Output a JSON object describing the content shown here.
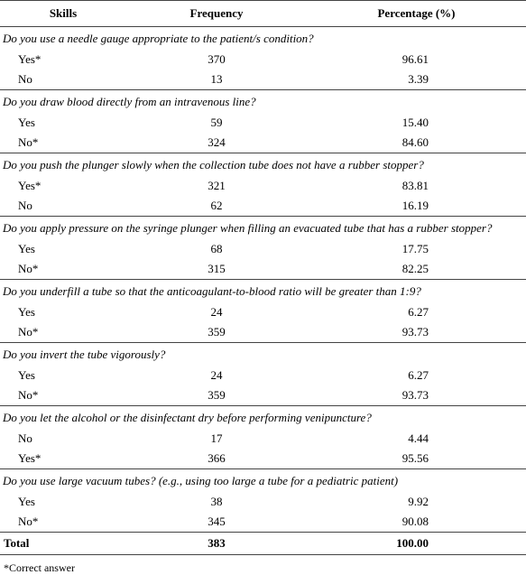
{
  "header": {
    "skills": "Skills",
    "frequency": "Frequency",
    "percentage": "Percentage (%)"
  },
  "groups": [
    {
      "question": "Do you use a needle gauge appropriate to the patient/s condition?",
      "rows": [
        [
          "Yes*",
          "370",
          "96.61"
        ],
        [
          "No",
          "13",
          "3.39"
        ]
      ]
    },
    {
      "question": "Do you draw blood directly from an intravenous line?",
      "rows": [
        [
          "Yes",
          "59",
          "15.40"
        ],
        [
          "No*",
          "324",
          "84.60"
        ]
      ]
    },
    {
      "question": "Do you push the plunger slowly when the collection tube does not have a rubber stopper?",
      "rows": [
        [
          "Yes*",
          "321",
          "83.81"
        ],
        [
          "No",
          "62",
          "16.19"
        ]
      ]
    },
    {
      "question": "Do you apply pressure on the syringe plunger when filling an evacuated tube that has a rubber stopper?",
      "rows": [
        [
          "Yes",
          "68",
          "17.75"
        ],
        [
          "No*",
          "315",
          "82.25"
        ]
      ]
    },
    {
      "question": "Do you underfill a tube so that the anticoagulant-to-blood ratio will be greater than 1:9?",
      "rows": [
        [
          "Yes",
          "24",
          "6.27"
        ],
        [
          "No*",
          "359",
          "93.73"
        ]
      ]
    },
    {
      "question": "Do you invert the tube vigorously?",
      "rows": [
        [
          "Yes",
          "24",
          "6.27"
        ],
        [
          "No*",
          "359",
          "93.73"
        ]
      ]
    },
    {
      "question": "Do you let the alcohol or the disinfectant dry before performing venipuncture?",
      "rows": [
        [
          "No",
          "17",
          "4.44"
        ],
        [
          "Yes*",
          "366",
          "95.56"
        ]
      ]
    },
    {
      "question": "Do you use large vacuum tubes? (e.g., using too large a tube for a pediatric patient)",
      "rows": [
        [
          "Yes",
          "38",
          "9.92"
        ],
        [
          "No*",
          "345",
          "90.08"
        ]
      ]
    }
  ],
  "total": [
    "Total",
    "383",
    "100.00"
  ],
  "footnote": "*Correct answer"
}
